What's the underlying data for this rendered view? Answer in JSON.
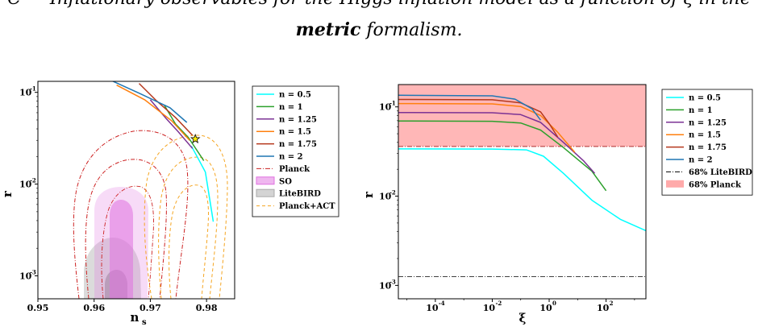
{
  "caption": {
    "line1": "C — Inflationary observables for the Higgs-inflation model as a function of ξ in the",
    "line2_bold": "metric",
    "line2_rest": " formalism."
  },
  "chart_data": [
    {
      "type": "line",
      "xlabel": "n",
      "xlabel_sub": "s",
      "ylabel": "r",
      "xlim": [
        0.95,
        0.985
      ],
      "ylim_log10": [
        -3.25,
        -0.88
      ],
      "x_ticks": [
        "0.95",
        "0.96",
        "0.97",
        "0.98"
      ],
      "y_ticks": [
        "10",
        "10",
        "10"
      ],
      "y_tick_exps": [
        "-1",
        "-2",
        "-3"
      ],
      "legend_position": "right",
      "legend": [
        {
          "label": "n = 0.5",
          "color": "#00ffff",
          "style": "solid"
        },
        {
          "label": "n = 1",
          "color": "#2ca02c",
          "style": "solid"
        },
        {
          "label": "n = 1.25",
          "color": "#7b3294",
          "style": "solid"
        },
        {
          "label": "n = 1.5",
          "color": "#ff7f0e",
          "style": "solid"
        },
        {
          "label": "n = 1.75",
          "color": "#b5371c",
          "style": "solid"
        },
        {
          "label": "n = 2",
          "color": "#1f77b4",
          "style": "solid"
        },
        {
          "label": "Planck",
          "color": "#cc2222",
          "style": "dashdot"
        },
        {
          "label": "SO",
          "color": "#e070e0",
          "style": "patch"
        },
        {
          "label": "LiteBIRD",
          "color": "#aaaaaa",
          "style": "patch"
        },
        {
          "label": "Planck+ACT",
          "color": "#f5a623",
          "style": "dashed"
        }
      ],
      "series": [
        {
          "name": "n = 0.5",
          "points": [
            [
              0.9773,
              0.026
            ],
            [
              0.9785,
              0.019
            ],
            [
              0.9798,
              0.0135
            ],
            [
              0.9812,
              0.0039
            ]
          ]
        },
        {
          "name": "n = 1",
          "points": [
            [
              0.9725,
              0.072
            ],
            [
              0.9745,
              0.045
            ],
            [
              0.9768,
              0.032
            ],
            [
              0.9795,
              0.018
            ]
          ]
        },
        {
          "name": "n = 1.25",
          "points": [
            [
              0.97,
              0.083
            ],
            [
              0.9728,
              0.052
            ],
            [
              0.975,
              0.037
            ],
            [
              0.9775,
              0.0245
            ]
          ]
        },
        {
          "name": "n = 1.5",
          "points": [
            [
              0.964,
              0.12
            ],
            [
              0.969,
              0.083
            ],
            [
              0.9738,
              0.049
            ],
            [
              0.977,
              0.03
            ]
          ]
        },
        {
          "name": "n = 1.75",
          "points": [
            [
              0.968,
              0.125
            ],
            [
              0.971,
              0.082
            ],
            [
              0.9745,
              0.053
            ],
            [
              0.9775,
              0.034
            ]
          ]
        },
        {
          "name": "n = 2",
          "points": [
            [
              0.963,
              0.135
            ],
            [
              0.968,
              0.098
            ],
            [
              0.9735,
              0.068
            ],
            [
              0.9765,
              0.047
            ]
          ]
        }
      ],
      "marker": {
        "name": "star",
        "x": 0.978,
        "y": 0.031,
        "color": "#ffee00"
      }
    },
    {
      "type": "line",
      "xlabel": "ξ",
      "ylabel": "r",
      "xlog": true,
      "xlim_log10": [
        -5.3,
        3.4
      ],
      "ylim_log10": [
        -3.15,
        -0.75
      ],
      "x_ticks": [
        "10",
        "10",
        "10",
        "10"
      ],
      "x_tick_exps": [
        "-4",
        "-2",
        "0",
        "2"
      ],
      "y_ticks": [
        "10",
        "10",
        "10"
      ],
      "y_tick_exps": [
        "-1",
        "-2",
        "-3"
      ],
      "legend_position": "right",
      "legend": [
        {
          "label": "n = 0.5",
          "color": "#00ffff",
          "style": "solid"
        },
        {
          "label": "n = 1",
          "color": "#2ca02c",
          "style": "solid"
        },
        {
          "label": "n = 1.25",
          "color": "#7b3294",
          "style": "solid"
        },
        {
          "label": "n = 1.5",
          "color": "#ff7f0e",
          "style": "solid"
        },
        {
          "label": "n = 1.75",
          "color": "#b5371c",
          "style": "solid"
        },
        {
          "label": "n = 2",
          "color": "#1f77b4",
          "style": "solid"
        },
        {
          "label": "68% LiteBIRD",
          "color": "#000000",
          "style": "dashdot"
        },
        {
          "label": "68% Planck",
          "color": "#ffaaaa",
          "style": "patch"
        }
      ],
      "planck_limit": 0.036,
      "litebird_limit": 0.00125,
      "series": [
        {
          "name": "n = 0.5",
          "points": [
            [
              -5.3,
              0.0338
            ],
            [
              -2.0,
              0.0337
            ],
            [
              -0.8,
              0.033
            ],
            [
              -0.2,
              0.028
            ],
            [
              0.5,
              0.018
            ],
            [
              1.5,
              0.009
            ],
            [
              2.5,
              0.0055
            ],
            [
              3.4,
              0.0041
            ]
          ]
        },
        {
          "name": "n = 1",
          "points": [
            [
              -5.3,
              0.0695
            ],
            [
              -2.0,
              0.069
            ],
            [
              -1.0,
              0.066
            ],
            [
              -0.3,
              0.055
            ],
            [
              0.5,
              0.035
            ],
            [
              1.5,
              0.019
            ],
            [
              2.0,
              0.0115
            ]
          ]
        },
        {
          "name": "n = 1.25",
          "points": [
            [
              -5.3,
              0.0865
            ],
            [
              -2.0,
              0.086
            ],
            [
              -1.0,
              0.082
            ],
            [
              -0.3,
              0.067
            ],
            [
              0.5,
              0.04
            ],
            [
              1.2,
              0.025
            ],
            [
              1.6,
              0.018
            ]
          ]
        },
        {
          "name": "n = 1.5",
          "points": [
            [
              -5.3,
              0.109
            ],
            [
              -2.0,
              0.108
            ],
            [
              -1.0,
              0.101
            ],
            [
              -0.3,
              0.08
            ],
            [
              0.3,
              0.052
            ],
            [
              0.9,
              0.031
            ]
          ]
        },
        {
          "name": "n = 1.75",
          "points": [
            [
              -5.3,
              0.121
            ],
            [
              -2.0,
              0.12
            ],
            [
              -1.0,
              0.111
            ],
            [
              -0.3,
              0.088
            ],
            [
              0.0,
              0.065
            ],
            [
              0.3,
              0.046
            ]
          ]
        },
        {
          "name": "n = 2",
          "points": [
            [
              -5.3,
              0.135
            ],
            [
              -2.0,
              0.133
            ],
            [
              -1.2,
              0.122
            ],
            [
              -0.6,
              0.095
            ],
            [
              -0.3,
              0.071
            ]
          ]
        }
      ]
    }
  ]
}
